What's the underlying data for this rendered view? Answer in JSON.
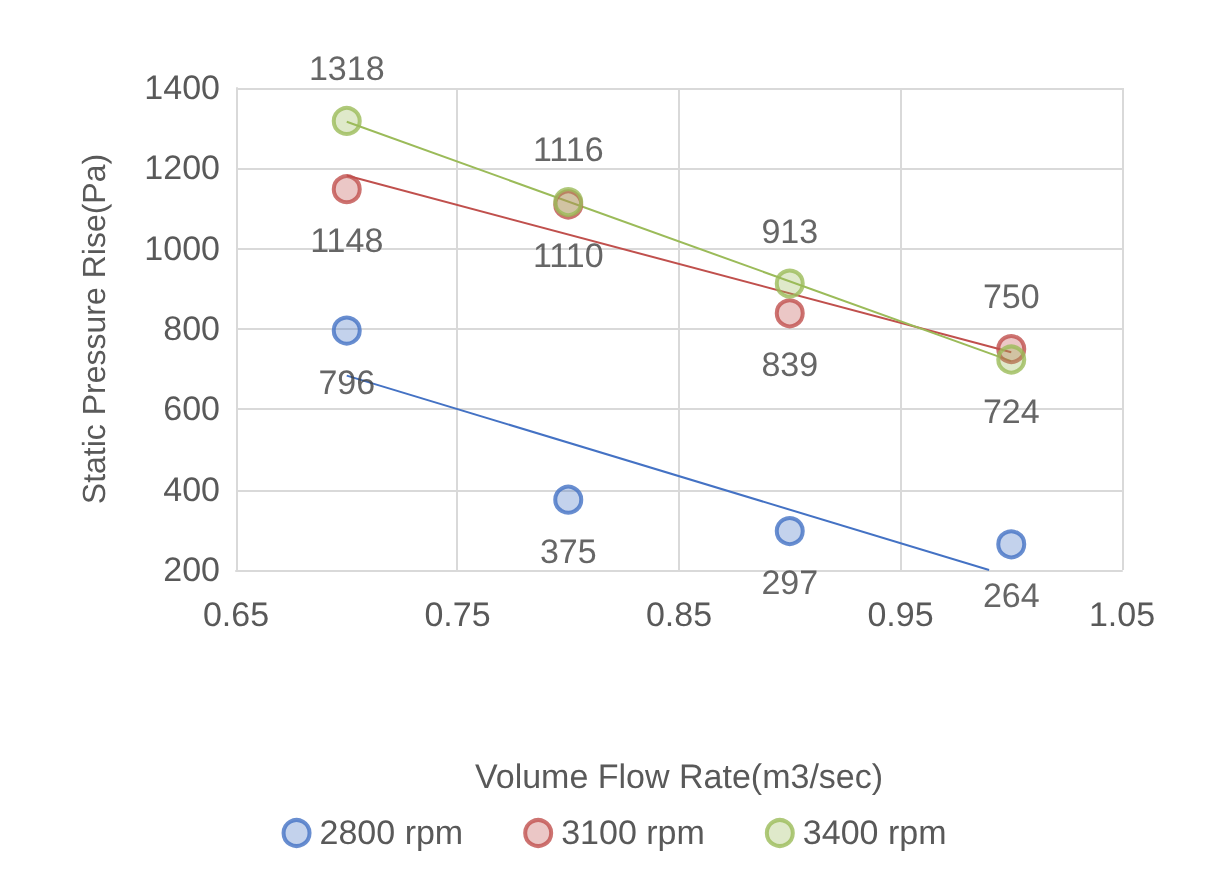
{
  "chart_data": {
    "type": "scatter",
    "xlabel": "Volume Flow Rate(m3/sec)",
    "ylabel": "Static Pressure Rise(Pa)",
    "x": [
      0.7,
      0.8,
      0.9,
      1.0
    ],
    "series": [
      {
        "name": "2800 rpm",
        "color": "#4472c4",
        "values": [
          796,
          375,
          297,
          264
        ],
        "value_labels": [
          "796",
          "375",
          "297",
          "264"
        ]
      },
      {
        "name": "3100 rpm",
        "color": "#c0504d",
        "values": [
          1148,
          1110,
          839,
          750
        ],
        "value_labels": [
          "1148",
          "1110",
          "839",
          "750"
        ]
      },
      {
        "name": "3400 rpm",
        "color": "#9bbb59",
        "values": [
          1318,
          1116,
          913,
          724
        ],
        "value_labels": [
          "1318",
          "1116",
          "913",
          "724"
        ]
      },
      {
        "type": "line",
        "color": "#4472c4",
        "x": [
          0.7,
          0.99
        ],
        "values": [
          684,
          200
        ],
        "marker": "none"
      },
      {
        "type": "line",
        "color": "#c0504d",
        "x": [
          0.7,
          1.0
        ],
        "values": [
          1182,
          742
        ],
        "marker": "none"
      },
      {
        "type": "line",
        "color": "#9bbb59",
        "x": [
          0.7,
          1.0
        ],
        "values": [
          1316,
          720
        ],
        "marker": "none"
      }
    ],
    "xlim": [
      0.65,
      1.05
    ],
    "xticks": [
      0.65,
      0.75,
      0.85,
      0.95,
      1.05
    ],
    "ylim": [
      200,
      1400
    ],
    "yticks": [
      200,
      400,
      600,
      800,
      1000,
      1200,
      1400
    ],
    "grid": true,
    "legend": "bottom",
    "marker": "circle"
  }
}
